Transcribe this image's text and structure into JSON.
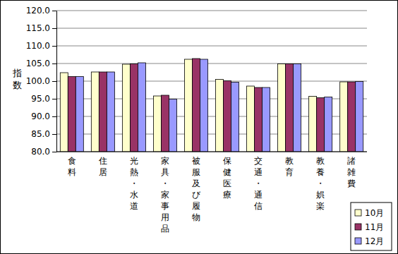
{
  "chart_data": {
    "type": "bar",
    "y_label": "指数",
    "categories": [
      "食料",
      "住居",
      "光熱・水道",
      "家具・家事用品",
      "被服及び履物",
      "保健医療",
      "交通・通信",
      "教育",
      "教養・娯楽",
      "諸雑費"
    ],
    "series": [
      {
        "name": "10月",
        "color": "#ffffcc",
        "values": [
          102.4,
          102.6,
          104.8,
          95.8,
          106.2,
          100.5,
          98.6,
          104.9,
          95.7,
          99.8
        ]
      },
      {
        "name": "11月",
        "color": "#993366",
        "values": [
          101.3,
          102.6,
          104.9,
          96.0,
          106.4,
          100.1,
          98.2,
          104.9,
          95.3,
          99.8
        ]
      },
      {
        "name": "12月",
        "color": "#9999ff",
        "values": [
          101.3,
          102.6,
          105.2,
          94.9,
          106.2,
          99.7,
          98.2,
          104.9,
          95.5,
          99.9
        ]
      }
    ],
    "ylim": [
      80,
      120
    ],
    "yticks": [
      {
        "value": 80,
        "label": "80.0"
      },
      {
        "value": 85,
        "label": "85.0"
      },
      {
        "value": 90,
        "label": "90.0"
      },
      {
        "value": 95,
        "label": "95.0"
      },
      {
        "value": 100,
        "label": "100.0"
      },
      {
        "value": 105,
        "label": "105.0"
      },
      {
        "value": 110,
        "label": "110.0"
      },
      {
        "value": 115,
        "label": "115.0"
      },
      {
        "value": 120,
        "label": "120.0"
      }
    ],
    "grid": true,
    "legend": "bottom-right"
  }
}
